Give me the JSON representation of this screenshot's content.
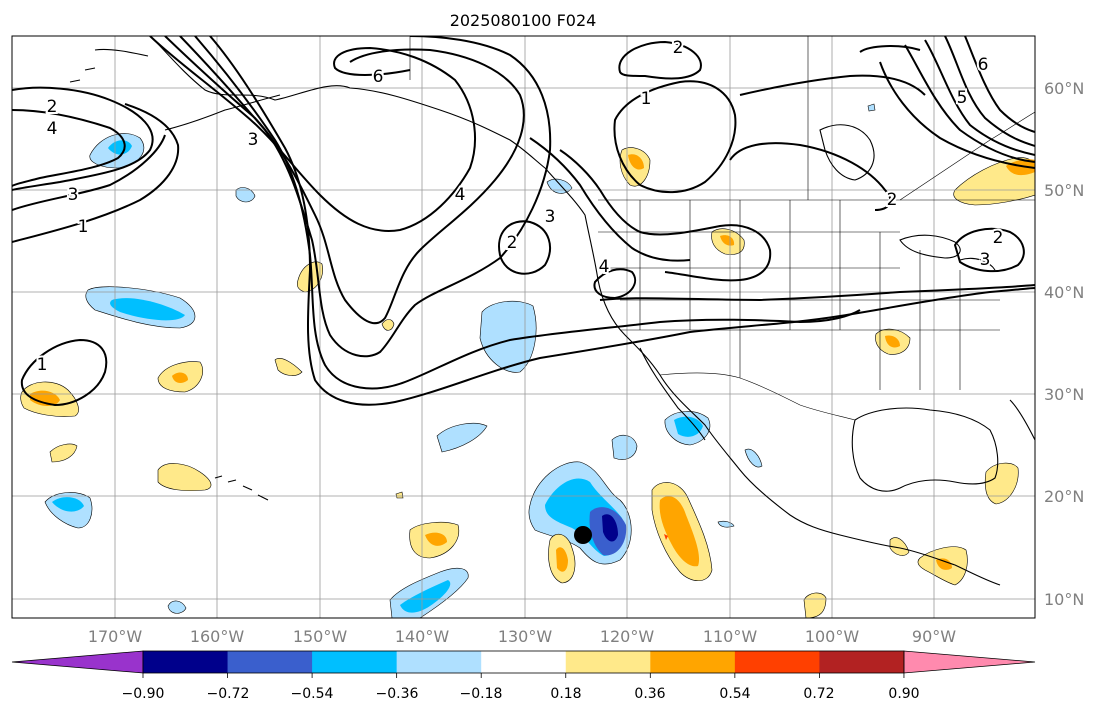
{
  "title": "2025080100 F024",
  "map": {
    "lon_ticks": [
      "170°W",
      "160°W",
      "150°W",
      "140°W",
      "130°W",
      "120°W",
      "110°W",
      "100°W",
      "90°W"
    ],
    "lat_ticks": [
      "60°N",
      "50°N",
      "40°N",
      "30°N",
      "20°N",
      "10°N"
    ],
    "contour_labels": [
      "2",
      "4",
      "3",
      "1",
      "6",
      "3",
      "4",
      "2",
      "3",
      "4",
      "2",
      "1",
      "2",
      "6",
      "5",
      "3",
      "2",
      "1"
    ],
    "storm_marker": "black-dot"
  },
  "colorbar": {
    "ticks": [
      "−0.90",
      "−0.72",
      "−0.54",
      "−0.36",
      "−0.18",
      "0.18",
      "0.36",
      "0.54",
      "0.72",
      "0.90"
    ],
    "colors": [
      "#9933cc",
      "#00008b",
      "#3a5fcd",
      "#00bfff",
      "#afe0ff",
      "#ffffff",
      "#ffe98a",
      "#ffa500",
      "#ff4000",
      "#b22222",
      "#ff8aae"
    ],
    "extend": "both"
  }
}
